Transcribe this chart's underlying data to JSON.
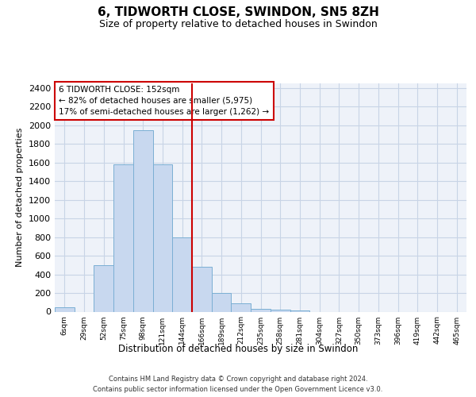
{
  "title": "6, TIDWORTH CLOSE, SWINDON, SN5 8ZH",
  "subtitle": "Size of property relative to detached houses in Swindon",
  "xlabel": "Distribution of detached houses by size in Swindon",
  "ylabel": "Number of detached properties",
  "bar_color": "#C8D8EF",
  "bar_edge_color": "#7BAFD4",
  "grid_color": "#C8D4E6",
  "background_color": "#EEF2F9",
  "vline_color": "#CC0000",
  "vline_x": 6.5,
  "annotation_line1": "6 TIDWORTH CLOSE: 152sqm",
  "annotation_line2": "← 82% of detached houses are smaller (5,975)",
  "annotation_line3": "17% of semi-detached houses are larger (1,262) →",
  "annotation_box_color": "#FFFFFF",
  "annotation_box_edge": "#CC0000",
  "categories": [
    "6sqm",
    "29sqm",
    "52sqm",
    "75sqm",
    "98sqm",
    "121sqm",
    "144sqm",
    "166sqm",
    "189sqm",
    "212sqm",
    "235sqm",
    "258sqm",
    "281sqm",
    "304sqm",
    "327sqm",
    "350sqm",
    "373sqm",
    "396sqm",
    "419sqm",
    "442sqm",
    "465sqm"
  ],
  "values": [
    50,
    0,
    500,
    1580,
    1950,
    1580,
    800,
    480,
    200,
    90,
    30,
    20,
    10,
    0,
    0,
    0,
    0,
    0,
    0,
    0,
    0
  ],
  "ylim": [
    0,
    2450
  ],
  "yticks": [
    0,
    200,
    400,
    600,
    800,
    1000,
    1200,
    1400,
    1600,
    1800,
    2000,
    2200,
    2400
  ],
  "footer_line1": "Contains HM Land Registry data © Crown copyright and database right 2024.",
  "footer_line2": "Contains public sector information licensed under the Open Government Licence v3.0.",
  "figsize": [
    6.0,
    5.0
  ],
  "dpi": 100
}
